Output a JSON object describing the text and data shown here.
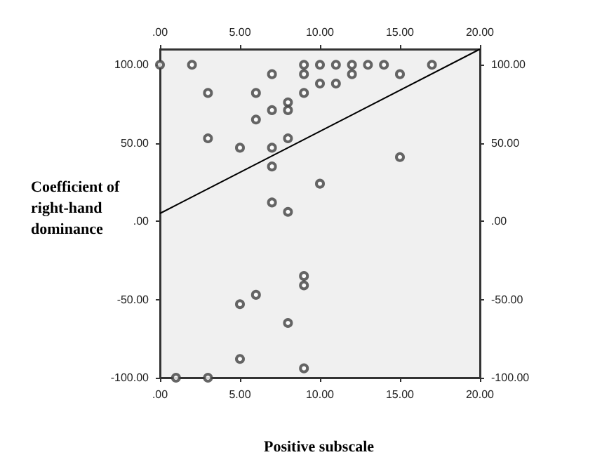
{
  "chart_data": {
    "type": "scatter",
    "xlabel": "Positive subscale",
    "ylabel": "Coefficient of right-hand dominance",
    "xlim": [
      0,
      20
    ],
    "ylim": [
      -100,
      110
    ],
    "xticks": [
      {
        "value": 0,
        "label": ".00"
      },
      {
        "value": 5,
        "label": "5.00"
      },
      {
        "value": 10,
        "label": "10.00"
      },
      {
        "value": 15,
        "label": "15.00"
      },
      {
        "value": 20,
        "label": "20.00"
      }
    ],
    "x2lim": [
      0,
      20
    ],
    "x2ticks": [
      {
        "value": 0,
        "label": ".00"
      },
      {
        "value": 5,
        "label": "5.00"
      },
      {
        "value": 10,
        "label": "10.00"
      },
      {
        "value": 15,
        "label": "15.00"
      },
      {
        "value": 20,
        "label": "20.00"
      }
    ],
    "yticks": [
      {
        "value": -100,
        "label": "-100.00"
      },
      {
        "value": -50,
        "label": "-50.00"
      },
      {
        "value": 0,
        "label": ".00"
      },
      {
        "value": 50,
        "label": "50.00"
      },
      {
        "value": 100,
        "label": "100.00"
      }
    ],
    "y2lim": [
      -100,
      110
    ],
    "y2ticks": [
      {
        "value": -100,
        "label": "-100.00"
      },
      {
        "value": -50,
        "label": "-50.00"
      },
      {
        "value": 0,
        "label": ".00"
      },
      {
        "value": 50,
        "label": "50.00"
      },
      {
        "value": 100,
        "label": "100.00"
      }
    ],
    "grid": false,
    "marker": "circle",
    "series": [
      {
        "color": "#404040",
        "x": [
          0,
          2,
          3,
          6,
          7,
          9,
          10,
          11,
          12,
          13,
          14,
          17,
          9,
          12,
          15,
          10,
          11,
          9,
          8,
          8,
          7,
          6,
          3,
          5,
          7,
          8,
          7,
          15,
          10,
          7,
          8,
          5,
          6,
          9,
          9,
          8,
          5,
          9,
          1,
          3
        ],
        "values": [
          100,
          100,
          82,
          82,
          94,
          100,
          100,
          100,
          100,
          100,
          100,
          100,
          94,
          94,
          94,
          88,
          88,
          82,
          76,
          71,
          71,
          65,
          53,
          47,
          47,
          53,
          35,
          41,
          24,
          12,
          6,
          -53,
          -47,
          -35,
          -41,
          -65,
          -88,
          -94,
          -100,
          -100
        ]
      },
      {
        "type": "line",
        "color": "#000000",
        "marker": "none",
        "line_style": "solid",
        "x": [
          0,
          20
        ],
        "values": [
          5,
          110
        ]
      }
    ]
  }
}
